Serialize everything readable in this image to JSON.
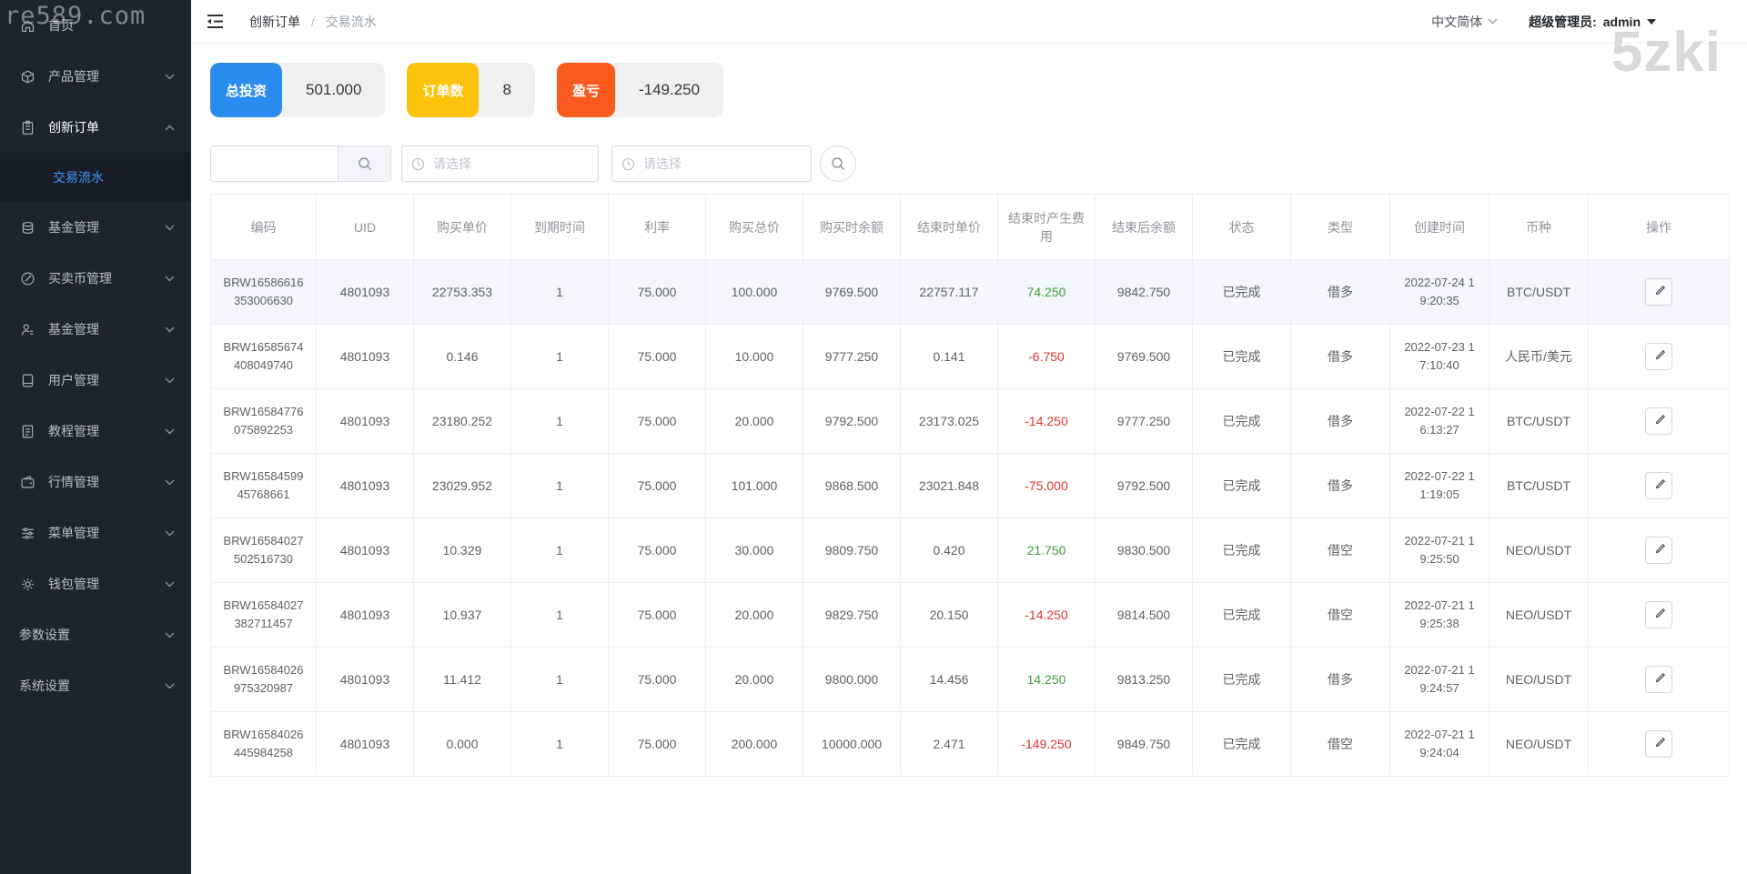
{
  "watermarks": {
    "top_left": "re589.com",
    "top_right": "5zki"
  },
  "topbar": {
    "breadcrumb": [
      "创新订单",
      "交易流水"
    ],
    "breadcrumb_separator": "/",
    "language": "中文简体",
    "user_role_label": "超级管理员:",
    "username": "admin"
  },
  "sidebar": {
    "items": [
      {
        "label": "首页",
        "icon": "home-icon",
        "chevron": null,
        "active": false
      },
      {
        "label": "产品管理",
        "icon": "cube-icon",
        "chevron": "down",
        "active": false
      },
      {
        "label": "创新订单",
        "icon": "clipboard-icon",
        "chevron": "up",
        "active": true,
        "children": [
          {
            "label": "交易流水",
            "active": true
          }
        ]
      },
      {
        "label": "基金管理",
        "icon": "coins-icon",
        "chevron": "down",
        "active": false
      },
      {
        "label": "买卖币管理",
        "icon": "edit-circle-icon",
        "chevron": "down",
        "active": false
      },
      {
        "label": "基金管理",
        "icon": "user-icon",
        "chevron": "down",
        "active": false
      },
      {
        "label": "用户管理",
        "icon": "notebook-icon",
        "chevron": "down",
        "active": false
      },
      {
        "label": "教程管理",
        "icon": "document-icon",
        "chevron": "down",
        "active": false
      },
      {
        "label": "行情管理",
        "icon": "wallet-icon",
        "chevron": "down",
        "active": false
      },
      {
        "label": "菜单管理",
        "icon": "sliders-icon",
        "chevron": "down",
        "active": false
      },
      {
        "label": "钱包管理",
        "icon": "gear-icon",
        "chevron": "down",
        "active": false
      },
      {
        "label": "参数设置",
        "icon": null,
        "chevron": "down",
        "active": false
      },
      {
        "label": "系统设置",
        "icon": null,
        "chevron": "down",
        "active": false
      }
    ]
  },
  "stats": [
    {
      "label": "总投资",
      "value": "501.000",
      "color": "#2b8cf0"
    },
    {
      "label": "订单数",
      "value": "8",
      "color": "#fbc30b"
    },
    {
      "label": "盈亏",
      "value": "-149.250",
      "color": "#fa5a1e"
    }
  ],
  "filters": {
    "keyword_value": "",
    "date_start_placeholder": "请选择",
    "date_end_placeholder": "请选择"
  },
  "status_colors": {
    "positive": "#3ca23c",
    "negative": "#e0342c"
  },
  "table": {
    "columns": [
      "编码",
      "UID",
      "购买单价",
      "到期时间",
      "利率",
      "购买总价",
      "购买时余额",
      "结束时单价",
      "结束时产生费用",
      "结束后余额",
      "状态",
      "类型",
      "创建时间",
      "币种",
      "操作"
    ],
    "rows": [
      {
        "code": [
          "BRW16586616",
          "353006630"
        ],
        "uid": "4801093",
        "unit_price": "22753.353",
        "expire": "1",
        "rate": "75.000",
        "total": "100.000",
        "balance_before": "9769.500",
        "end_price": "22757.117",
        "fee": "74.250",
        "fee_sign": "positive",
        "balance_after": "9842.750",
        "status": "已完成",
        "type": "借多",
        "created": [
          "2022-07-24 1",
          "9:20:35"
        ],
        "pair": "BTC/USDT",
        "striped": true
      },
      {
        "code": [
          "BRW16585674",
          "408049740"
        ],
        "uid": "4801093",
        "unit_price": "0.146",
        "expire": "1",
        "rate": "75.000",
        "total": "10.000",
        "balance_before": "9777.250",
        "end_price": "0.141",
        "fee": "-6.750",
        "fee_sign": "negative",
        "balance_after": "9769.500",
        "status": "已完成",
        "type": "借多",
        "created": [
          "2022-07-23 1",
          "7:10:40"
        ],
        "pair": "人民币/美元",
        "striped": false
      },
      {
        "code": [
          "BRW16584776",
          "075892253"
        ],
        "uid": "4801093",
        "unit_price": "23180.252",
        "expire": "1",
        "rate": "75.000",
        "total": "20.000",
        "balance_before": "9792.500",
        "end_price": "23173.025",
        "fee": "-14.250",
        "fee_sign": "negative",
        "balance_after": "9777.250",
        "status": "已完成",
        "type": "借多",
        "created": [
          "2022-07-22 1",
          "6:13:27"
        ],
        "pair": "BTC/USDT",
        "striped": false
      },
      {
        "code": [
          "BRW16584599",
          "45768661"
        ],
        "uid": "4801093",
        "unit_price": "23029.952",
        "expire": "1",
        "rate": "75.000",
        "total": "101.000",
        "balance_before": "9868.500",
        "end_price": "23021.848",
        "fee": "-75.000",
        "fee_sign": "negative",
        "balance_after": "9792.500",
        "status": "已完成",
        "type": "借多",
        "created": [
          "2022-07-22 1",
          "1:19:05"
        ],
        "pair": "BTC/USDT",
        "striped": false
      },
      {
        "code": [
          "BRW16584027",
          "502516730"
        ],
        "uid": "4801093",
        "unit_price": "10.329",
        "expire": "1",
        "rate": "75.000",
        "total": "30.000",
        "balance_before": "9809.750",
        "end_price": "0.420",
        "fee": "21.750",
        "fee_sign": "positive",
        "balance_after": "9830.500",
        "status": "已完成",
        "type": "借空",
        "created": [
          "2022-07-21 1",
          "9:25:50"
        ],
        "pair": "NEO/USDT",
        "striped": false
      },
      {
        "code": [
          "BRW16584027",
          "382711457"
        ],
        "uid": "4801093",
        "unit_price": "10.937",
        "expire": "1",
        "rate": "75.000",
        "total": "20.000",
        "balance_before": "9829.750",
        "end_price": "20.150",
        "fee": "-14.250",
        "fee_sign": "negative",
        "balance_after": "9814.500",
        "status": "已完成",
        "type": "借空",
        "created": [
          "2022-07-21 1",
          "9:25:38"
        ],
        "pair": "NEO/USDT",
        "striped": false
      },
      {
        "code": [
          "BRW16584026",
          "975320987"
        ],
        "uid": "4801093",
        "unit_price": "11.412",
        "expire": "1",
        "rate": "75.000",
        "total": "20.000",
        "balance_before": "9800.000",
        "end_price": "14.456",
        "fee": "14.250",
        "fee_sign": "positive",
        "balance_after": "9813.250",
        "status": "已完成",
        "type": "借多",
        "created": [
          "2022-07-21 1",
          "9:24:57"
        ],
        "pair": "NEO/USDT",
        "striped": false
      },
      {
        "code": [
          "BRW16584026",
          "445984258"
        ],
        "uid": "4801093",
        "unit_price": "0.000",
        "expire": "1",
        "rate": "75.000",
        "total": "200.000",
        "balance_before": "10000.000",
        "end_price": "2.471",
        "fee": "-149.250",
        "fee_sign": "negative",
        "balance_after": "9849.750",
        "status": "已完成",
        "type": "借空",
        "created": [
          "2022-07-21 1",
          "9:24:04"
        ],
        "pair": "NEO/USDT",
        "striped": false
      }
    ]
  }
}
